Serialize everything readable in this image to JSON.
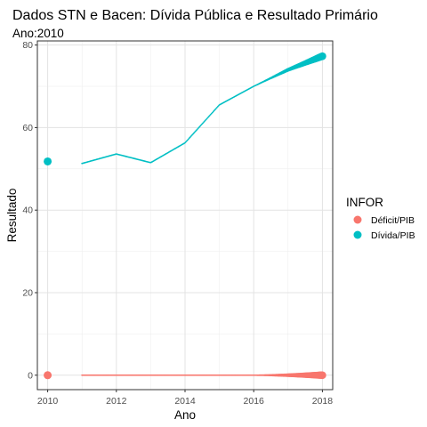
{
  "title": "Dados STN e Bacen: Dívida Pública e Resultado Primário",
  "subtitle": "Ano:2010",
  "chart_data": {
    "type": "scatter",
    "xlabel": "Ano",
    "ylabel": "Resultado",
    "xlim": [
      2009.7,
      2018.3
    ],
    "ylim": [
      -3.5,
      81
    ],
    "x_ticks": [
      2010,
      2012,
      2014,
      2016,
      2018
    ],
    "y_ticks": [
      0,
      20,
      40,
      60,
      80
    ],
    "grid": true,
    "legend_title": "INFOR",
    "legend_position": "right",
    "series": [
      {
        "name": "Déficit/PIB",
        "color": "#F8766D",
        "points": [
          [
            2010,
            0
          ]
        ],
        "trail": [
          [
            2011,
            0
          ],
          [
            2016,
            0
          ],
          [
            2018,
            0
          ]
        ]
      },
      {
        "name": "Dívida/PIB",
        "color": "#00BFC4",
        "points": [
          [
            2010,
            51.8
          ]
        ],
        "trail": [
          [
            2011,
            51.3
          ],
          [
            2012,
            53.6
          ],
          [
            2013,
            51.5
          ],
          [
            2014,
            56.3
          ],
          [
            2015,
            65.5
          ],
          [
            2016,
            70
          ],
          [
            2017,
            74
          ],
          [
            2018,
            77.3
          ]
        ]
      }
    ]
  }
}
